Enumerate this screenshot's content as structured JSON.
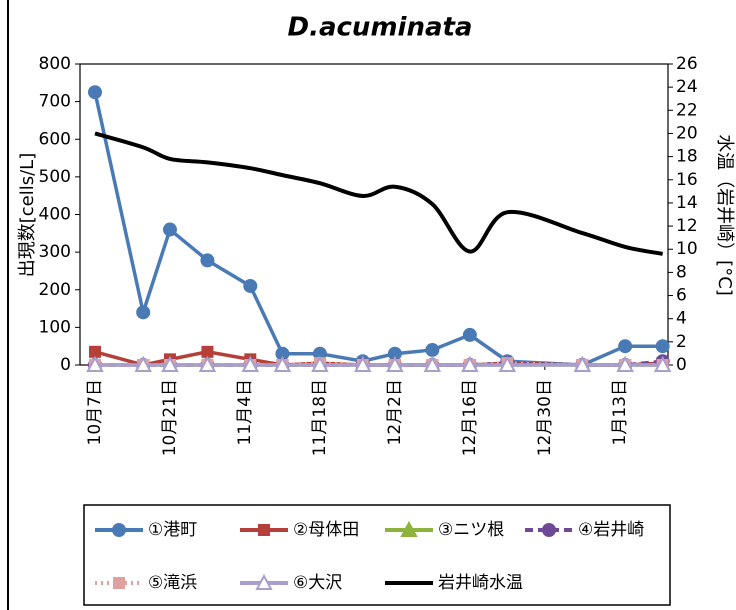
{
  "chart_data": {
    "type": "line",
    "title": "D.acuminata",
    "y_label": "出現数[cells/L]",
    "y2_label": "水温（岩井崎）[°C]",
    "x": [
      0,
      9,
      14,
      21,
      29,
      35,
      42,
      50,
      56,
      63,
      70,
      77,
      91,
      99,
      106
    ],
    "xlim": [
      -2.8,
      107
    ],
    "xticks": [
      {
        "value": 0,
        "label": "10月7日"
      },
      {
        "value": 14,
        "label": "10月21日"
      },
      {
        "value": 28,
        "label": "11月4日"
      },
      {
        "value": 42,
        "label": "11月18日"
      },
      {
        "value": 56,
        "label": "12月2日"
      },
      {
        "value": 70,
        "label": "12月16日"
      },
      {
        "value": 84,
        "label": "12月30日"
      },
      {
        "value": 98,
        "label": "1月13日"
      }
    ],
    "ylim": [
      0,
      800
    ],
    "yticks": [
      0,
      100,
      200,
      300,
      400,
      500,
      600,
      700,
      800
    ],
    "y2lim": [
      0,
      26
    ],
    "y2ticks": [
      0,
      2,
      4,
      6,
      8,
      10,
      12,
      14,
      16,
      18,
      20,
      22,
      24,
      26
    ],
    "series": [
      {
        "name": "①港町",
        "color": "#4a7ab5",
        "marker": "circle",
        "dash": "solid",
        "values": [
          725,
          140,
          360,
          278,
          210,
          30,
          30,
          10,
          30,
          40,
          80,
          10,
          0,
          50,
          50
        ]
      },
      {
        "name": "②母体田",
        "color": "#b5403a",
        "marker": "square",
        "dash": "solid",
        "values": [
          35,
          0,
          15,
          35,
          15,
          0,
          5,
          0,
          0,
          0,
          0,
          5,
          0,
          0,
          5
        ]
      },
      {
        "name": "③ニツ根",
        "color": "#8db33c",
        "marker": "triangle",
        "dash": "solid",
        "values": [
          0,
          0,
          0,
          0,
          0,
          0,
          0,
          0,
          0,
          0,
          0,
          0,
          0,
          0,
          0
        ]
      },
      {
        "name": "④岩井崎",
        "color": "#6e4a96",
        "marker": "circle",
        "dash": "dashed",
        "values": [
          0,
          0,
          0,
          0,
          0,
          0,
          0,
          0,
          0,
          0,
          0,
          5,
          0,
          0,
          10
        ]
      },
      {
        "name": "⑤滝浜",
        "color": "#e0a0a0",
        "marker": "square",
        "dash": "dotted",
        "values": [
          0,
          0,
          0,
          0,
          0,
          0,
          5,
          0,
          0,
          0,
          0,
          5,
          0,
          0,
          0
        ]
      },
      {
        "name": "⑥大沢",
        "color": "#a99fcf",
        "marker": "open-triangle",
        "dash": "solid",
        "values": [
          0,
          0,
          0,
          0,
          0,
          0,
          0,
          0,
          0,
          0,
          0,
          0,
          0,
          0,
          0
        ]
      },
      {
        "name": "岩井崎水温",
        "color": "#000000",
        "marker": "none",
        "dash": "solid",
        "axis": "y2",
        "smooth": true,
        "values": [
          20,
          18.8,
          17.8,
          17.5,
          17,
          16.4,
          15.7,
          14.6,
          15.4,
          13.9,
          9.8,
          13.2,
          11.4,
          10.2,
          9.6
        ]
      }
    ]
  }
}
